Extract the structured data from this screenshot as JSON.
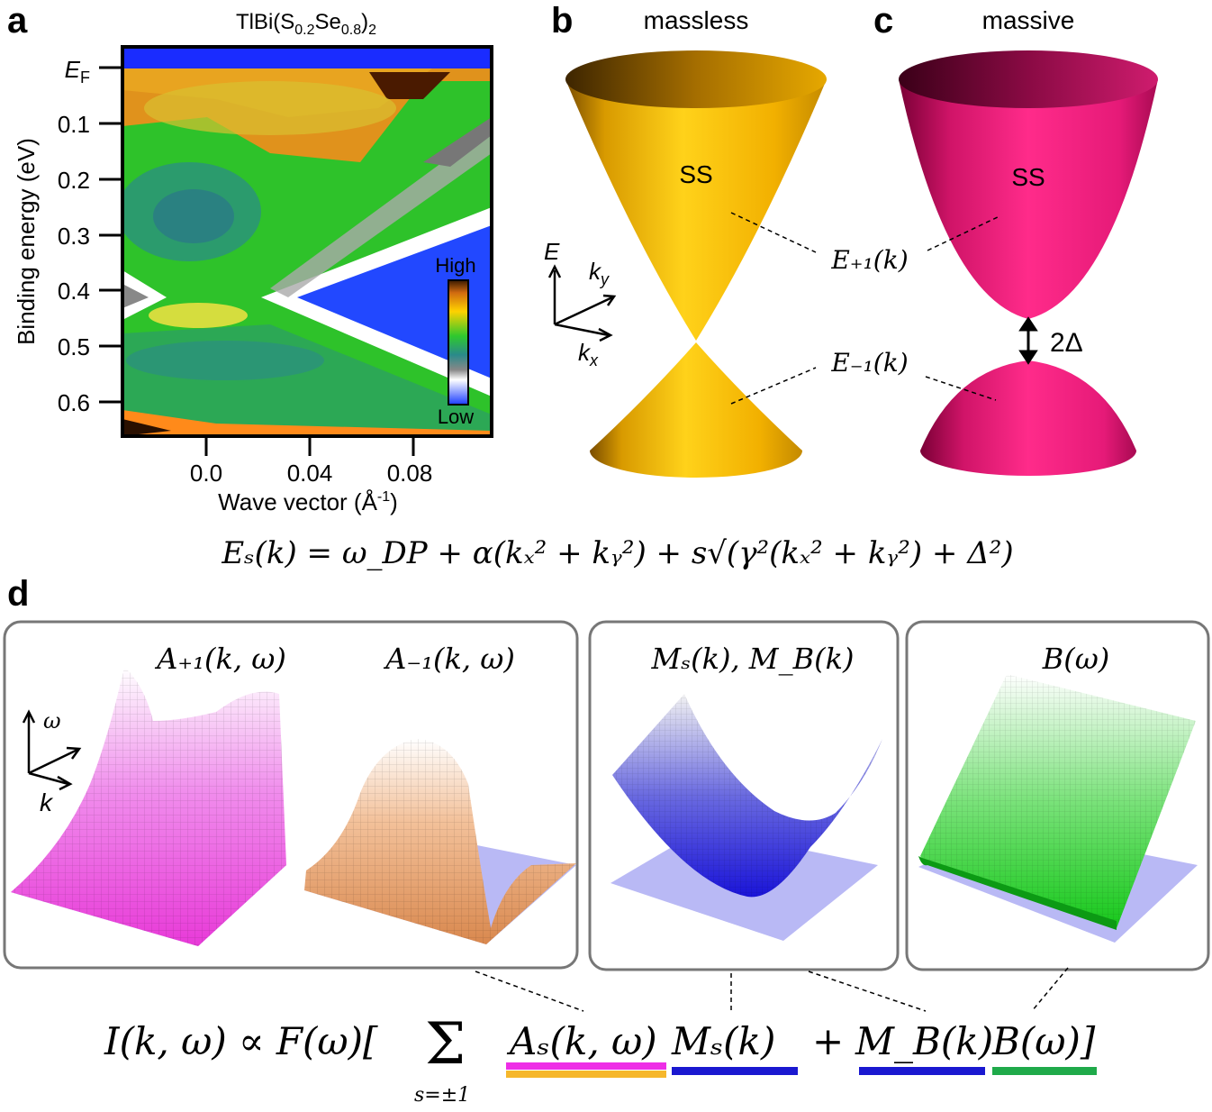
{
  "panel_a": {
    "letter": "a",
    "title_main": "TlBi(S",
    "title_sub1": "0.2",
    "title_mid": "Se",
    "title_sub2": "0.8",
    "title_end": ")",
    "title_sub3": "2",
    "ylabel": "Binding energy (eV)",
    "xlabel_main": "Wave vector (Å",
    "xlabel_sup": "-1",
    "xlabel_end": ")",
    "ef_label": "E",
    "ef_sub": "F",
    "yticks": [
      "0.1",
      "0.2",
      "0.3",
      "0.4",
      "0.5",
      "0.6"
    ],
    "xticks": [
      "0.0",
      "0.04",
      "0.08"
    ],
    "colorbar_high": "High",
    "colorbar_low": "Low"
  },
  "panel_b": {
    "letter": "b",
    "title": "massless",
    "ss_label": "SS",
    "axis_e": "E",
    "axis_ky": "k",
    "axis_ky_sub": "y",
    "axis_kx": "k",
    "axis_kx_sub": "x",
    "color": "#f7b500"
  },
  "panel_c": {
    "letter": "c",
    "title": "massive",
    "ss_label": "SS",
    "gap_label": "2Δ",
    "color": "#ea1f7e"
  },
  "band_labels": {
    "upper": "E₊₁(k)",
    "lower": "E₋₁(k)"
  },
  "equation_dispersion": "Eₛ(k) = ω_DP + α(kₓ² + kᵧ²) + s√(γ²(kₓ² + kᵧ²) + Δ²)",
  "panel_d": {
    "letter": "d",
    "box1_label_a": "A₊₁(k, ω)",
    "box1_label_b": "A₋₁(k, ω)",
    "box2_label": "Mₛ(k), M_B(k)",
    "box3_label": "B(ω)",
    "axis_omega": "ω",
    "axis_k": "k"
  },
  "equation_intensity": {
    "lhs": "I(k, ω) ∝ F(ω)[",
    "sum": "Σ",
    "sum_sub": "s=±1",
    "term_a": "Aₛ(k, ω)",
    "term_ms": "Mₛ(k)",
    "plus": "+",
    "term_mb": "M_B(k)",
    "term_b": "B(ω)]"
  },
  "colors": {
    "magenta": "#ee2ee6",
    "orange": "#f6b72b",
    "blue": "#1a18d0",
    "green": "#1faa4a"
  }
}
